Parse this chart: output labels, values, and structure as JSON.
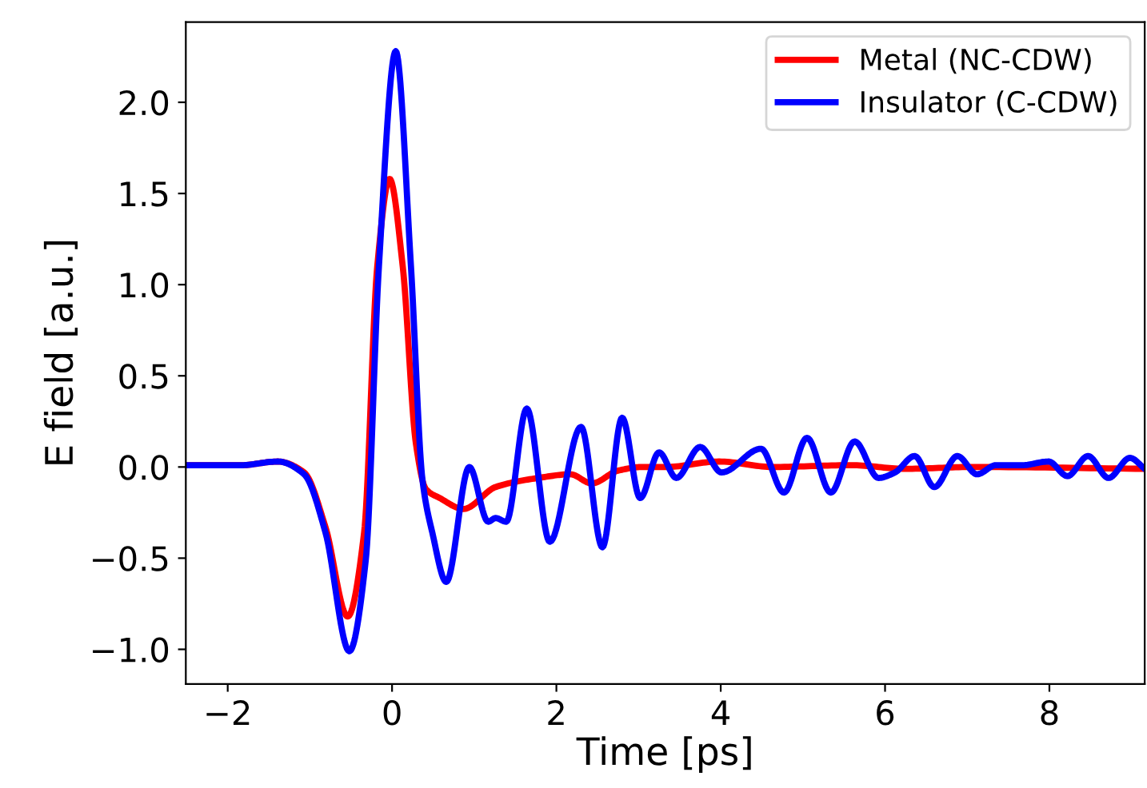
{
  "chart_data": {
    "type": "line",
    "xlabel": "Time [ps]",
    "ylabel": "E field [a.u.]",
    "xlim": [
      -2.51,
      9.16
    ],
    "xticks": [
      {
        "value": -2,
        "label": "−2"
      },
      0,
      2,
      4,
      6,
      8
    ],
    "ylim": [
      -1.19,
      2.44
    ],
    "yticks": [
      {
        "value": -1,
        "label": "−1.0"
      },
      {
        "value": -0.5,
        "label": "−0.5"
      },
      {
        "value": 0,
        "label": "0.0"
      },
      0.5,
      {
        "value": 1,
        "label": "1.0"
      },
      1.5,
      {
        "value": 2,
        "label": "2.0"
      }
    ],
    "legend": "top right",
    "grid": false,
    "line_style": "solid",
    "marker": "none",
    "series": [
      {
        "name": "Metal (NC-CDW)",
        "color": "#ff0000",
        "x": [
          -2.51,
          -1.84,
          -1.39,
          -1.07,
          -0.81,
          -0.54,
          -0.34,
          -0.18,
          -0.03,
          0.13,
          0.29,
          0.41,
          0.58,
          0.87,
          1.26,
          1.78,
          2.17,
          2.43,
          2.75,
          3.05,
          3.33,
          3.98,
          4.63,
          5.59,
          6.25,
          7.06,
          9.16
        ],
        "values": [
          0.01,
          0.01,
          0.03,
          -0.03,
          -0.33,
          -0.82,
          -0.36,
          1.1,
          1.58,
          1.1,
          0.13,
          -0.12,
          -0.17,
          -0.23,
          -0.11,
          -0.06,
          -0.04,
          -0.09,
          -0.02,
          0.0,
          0.0,
          0.03,
          0.0,
          0.01,
          -0.01,
          0.0,
          -0.01
        ]
      },
      {
        "name": "Insulator (C-CDW)",
        "color": "#0000ff",
        "x": [
          -2.51,
          -1.84,
          -1.39,
          -1.07,
          -0.81,
          -0.52,
          -0.32,
          -0.16,
          0.045,
          0.23,
          0.37,
          0.49,
          0.66,
          0.94,
          1.17,
          1.26,
          1.39,
          1.64,
          1.92,
          2.3,
          2.56,
          2.8,
          3.02,
          3.25,
          3.46,
          3.75,
          4.01,
          4.49,
          4.77,
          5.05,
          5.34,
          5.63,
          5.92,
          6.12,
          6.36,
          6.6,
          6.88,
          7.12,
          7.35,
          7.67,
          7.99,
          8.22,
          8.47,
          8.72,
          8.98,
          9.16
        ],
        "values": [
          0.01,
          0.01,
          0.03,
          -0.04,
          -0.36,
          -1.01,
          -0.51,
          1.1,
          2.28,
          1.1,
          -0.07,
          -0.36,
          -0.63,
          0.0,
          -0.3,
          -0.28,
          -0.3,
          0.32,
          -0.41,
          0.22,
          -0.44,
          0.27,
          -0.17,
          0.08,
          -0.06,
          0.11,
          -0.03,
          0.1,
          -0.14,
          0.16,
          -0.14,
          0.14,
          -0.06,
          -0.03,
          0.06,
          -0.11,
          0.06,
          -0.04,
          0.01,
          0.01,
          0.03,
          -0.05,
          0.06,
          -0.06,
          0.05,
          -0.01
        ]
      }
    ]
  }
}
